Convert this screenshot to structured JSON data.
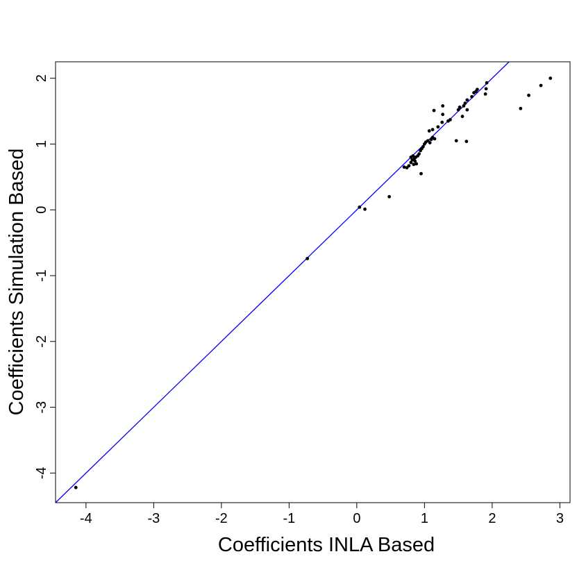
{
  "chart_data": {
    "type": "scatter",
    "title": "",
    "xlabel": "Coefficients INLA Based",
    "ylabel": "Coefficients Simulation Based",
    "xlim": [
      -4.45,
      3.15
    ],
    "ylim": [
      -4.45,
      2.25
    ],
    "xticks": [
      -4,
      -3,
      -2,
      -1,
      0,
      1,
      2,
      3
    ],
    "yticks": [
      -4,
      -3,
      -2,
      -1,
      0,
      1,
      2
    ],
    "reference_line": {
      "slope": 1,
      "intercept": 0,
      "color": "#0000ff"
    },
    "point_color": "#000000",
    "grid": false,
    "points": [
      [
        -4.15,
        -4.22
      ],
      [
        -0.73,
        -0.74
      ],
      [
        0.04,
        0.04
      ],
      [
        0.12,
        0.01
      ],
      [
        0.48,
        0.2
      ],
      [
        0.7,
        0.65
      ],
      [
        0.74,
        0.64
      ],
      [
        0.77,
        0.67
      ],
      [
        0.8,
        0.72
      ],
      [
        0.84,
        0.69
      ],
      [
        0.86,
        0.74
      ],
      [
        0.88,
        0.7
      ],
      [
        0.95,
        0.55
      ],
      [
        0.8,
        0.8
      ],
      [
        0.82,
        0.76
      ],
      [
        0.83,
        0.82
      ],
      [
        0.85,
        0.78
      ],
      [
        0.87,
        0.8
      ],
      [
        0.9,
        0.82
      ],
      [
        0.92,
        0.85
      ],
      [
        0.94,
        0.9
      ],
      [
        0.96,
        0.93
      ],
      [
        0.98,
        0.96
      ],
      [
        1.0,
        1.0
      ],
      [
        1.02,
        1.03
      ],
      [
        1.05,
        1.05
      ],
      [
        1.08,
        1.02
      ],
      [
        1.1,
        1.07
      ],
      [
        1.12,
        1.1
      ],
      [
        1.15,
        1.08
      ],
      [
        1.07,
        1.2
      ],
      [
        1.12,
        1.22
      ],
      [
        1.14,
        1.51
      ],
      [
        1.2,
        1.26
      ],
      [
        1.26,
        1.33
      ],
      [
        1.27,
        1.45
      ],
      [
        1.27,
        1.58
      ],
      [
        1.35,
        1.35
      ],
      [
        1.38,
        1.37
      ],
      [
        1.47,
        1.05
      ],
      [
        1.5,
        1.52
      ],
      [
        1.52,
        1.56
      ],
      [
        1.56,
        1.42
      ],
      [
        1.58,
        1.58
      ],
      [
        1.6,
        1.62
      ],
      [
        1.62,
        1.04
      ],
      [
        1.63,
        1.52
      ],
      [
        1.63,
        1.67
      ],
      [
        1.7,
        1.72
      ],
      [
        1.73,
        1.78
      ],
      [
        1.76,
        1.8
      ],
      [
        1.78,
        1.83
      ],
      [
        1.9,
        1.76
      ],
      [
        1.91,
        1.84
      ],
      [
        1.92,
        1.93
      ],
      [
        2.42,
        1.54
      ],
      [
        2.54,
        1.74
      ],
      [
        2.72,
        1.89
      ],
      [
        2.86,
        2.0
      ]
    ]
  }
}
